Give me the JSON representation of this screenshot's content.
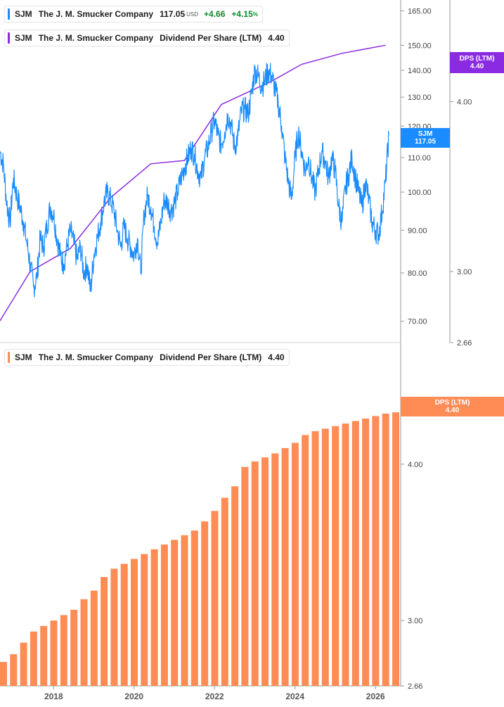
{
  "legend_price": {
    "ticker": "SJM",
    "company": "The J. M. Smucker Company",
    "price": "117.05",
    "currency": "USD",
    "change": "+4.66",
    "change_pct": "+4.15",
    "pct_sign": "%",
    "color": "#1a8cff"
  },
  "legend_dps_top": {
    "ticker": "SJM",
    "company": "The J. M. Smucker Company",
    "metric": "Dividend Per Share (LTM)",
    "value": "4.40",
    "color": "#8a2be2"
  },
  "legend_dps_bottom": {
    "ticker": "SJM",
    "company": "The J. M. Smucker Company",
    "metric": "Dividend Per Share (LTM)",
    "value": "4.40",
    "color": "#ff8c55"
  },
  "tags": {
    "price": {
      "label": "SJM",
      "value": "117.05",
      "color": "#1a8cff"
    },
    "dps_top": {
      "label": "DPS (LTM)",
      "value": "4.40",
      "color": "#8a2be2"
    },
    "dps_bottom": {
      "label": "DPS (LTM)",
      "value": "4.40",
      "color": "#ff8c55"
    }
  },
  "chart_data": [
    {
      "type": "line",
      "series": [
        {
          "name": "SJM",
          "color": "#1a8cff",
          "points": [
            [
              "2016-09",
              112
            ],
            [
              "2016-10",
              108
            ],
            [
              "2016-11",
              97
            ],
            [
              "2016-12",
              92
            ],
            [
              "2017-01",
              104
            ],
            [
              "2017-02",
              99
            ],
            [
              "2017-03",
              96
            ],
            [
              "2017-04",
              92
            ],
            [
              "2017-05",
              87
            ],
            [
              "2017-06",
              82
            ],
            [
              "2017-07",
              77
            ],
            [
              "2017-08",
              79
            ],
            [
              "2017-09",
              88
            ],
            [
              "2017-10",
              86
            ],
            [
              "2017-11",
              91
            ],
            [
              "2017-12",
              96
            ],
            [
              "2018-01",
              94
            ],
            [
              "2018-02",
              88
            ],
            [
              "2018-03",
              84
            ],
            [
              "2018-04",
              82
            ],
            [
              "2018-05",
              86
            ],
            [
              "2018-06",
              90
            ],
            [
              "2018-07",
              87
            ],
            [
              "2018-08",
              83
            ],
            [
              "2018-09",
              86
            ],
            [
              "2018-10",
              80
            ],
            [
              "2018-11",
              82
            ],
            [
              "2018-12",
              76
            ],
            [
              "2019-01",
              84
            ],
            [
              "2019-02",
              88
            ],
            [
              "2019-03",
              92
            ],
            [
              "2019-04",
              97
            ],
            [
              "2019-05",
              100
            ],
            [
              "2019-06",
              98
            ],
            [
              "2019-07",
              95
            ],
            [
              "2019-08",
              90
            ],
            [
              "2019-09",
              86
            ],
            [
              "2019-10",
              91
            ],
            [
              "2019-11",
              88
            ],
            [
              "2019-12",
              86
            ],
            [
              "2020-01",
              84
            ],
            [
              "2020-02",
              88
            ],
            [
              "2020-03",
              80
            ],
            [
              "2020-04",
              94
            ],
            [
              "2020-05",
              99
            ],
            [
              "2020-06",
              96
            ],
            [
              "2020-07",
              91
            ],
            [
              "2020-08",
              87
            ],
            [
              "2020-09",
              92
            ],
            [
              "2020-10",
              98
            ],
            [
              "2020-11",
              97
            ],
            [
              "2020-12",
              95
            ],
            [
              "2021-01",
              97
            ],
            [
              "2021-02",
              100
            ],
            [
              "2021-03",
              104
            ],
            [
              "2021-04",
              107
            ],
            [
              "2021-05",
              110
            ],
            [
              "2021-06",
              113
            ],
            [
              "2021-07",
              111
            ],
            [
              "2021-08",
              106
            ],
            [
              "2021-09",
              104
            ],
            [
              "2021-10",
              110
            ],
            [
              "2021-11",
              113
            ],
            [
              "2021-12",
              118
            ],
            [
              "2022-01",
              122
            ],
            [
              "2022-02",
              117
            ],
            [
              "2022-03",
              114
            ],
            [
              "2022-04",
              118
            ],
            [
              "2022-05",
              124
            ],
            [
              "2022-06",
              120
            ],
            [
              "2022-07",
              113
            ],
            [
              "2022-08",
              117
            ],
            [
              "2022-09",
              125
            ],
            [
              "2022-10",
              126
            ],
            [
              "2022-11",
              124
            ],
            [
              "2022-12",
              131
            ],
            [
              "2023-01",
              140
            ],
            [
              "2023-02",
              138
            ],
            [
              "2023-03",
              134
            ],
            [
              "2023-04",
              136
            ],
            [
              "2023-05",
              140
            ],
            [
              "2023-06",
              138
            ],
            [
              "2023-07",
              133
            ],
            [
              "2023-08",
              128
            ],
            [
              "2023-09",
              120
            ],
            [
              "2023-10",
              110
            ],
            [
              "2023-11",
              103
            ],
            [
              "2023-12",
              98
            ],
            [
              "2024-01",
              110
            ],
            [
              "2024-02",
              118
            ],
            [
              "2024-03",
              112
            ],
            [
              "2024-04",
              106
            ],
            [
              "2024-05",
              110
            ],
            [
              "2024-06",
              104
            ],
            [
              "2024-07",
              100
            ],
            [
              "2024-08",
              106
            ],
            [
              "2024-09",
              112
            ],
            [
              "2024-10",
              109
            ],
            [
              "2024-11",
              104
            ],
            [
              "2024-12",
              110
            ],
            [
              "2025-01",
              106
            ],
            [
              "2025-02",
              96
            ],
            [
              "2025-03",
              92
            ],
            [
              "2025-04",
              101
            ],
            [
              "2025-05",
              105
            ],
            [
              "2025-06",
              110
            ],
            [
              "2025-07",
              104
            ],
            [
              "2025-08",
              100
            ],
            [
              "2025-09",
              96
            ],
            [
              "2025-10",
              103
            ],
            [
              "2025-11",
              98
            ],
            [
              "2025-12",
              92
            ],
            [
              "2026-01",
              90
            ],
            [
              "2026-02",
              89
            ],
            [
              "2026-03",
              95
            ],
            [
              "2026-04",
              103
            ],
            [
              "2026-05",
              117.05
            ]
          ]
        },
        {
          "name": "Dividend Per Share (LTM)",
          "color": "#8a2be2",
          "points": [
            [
              "2016-09",
              2.76
            ],
            [
              "2017-06",
              3.0
            ],
            [
              "2018-06",
              3.12
            ],
            [
              "2019-06",
              3.4
            ],
            [
              "2020-06",
              3.6
            ],
            [
              "2021-04",
              3.62
            ],
            [
              "2022-03",
              3.98
            ],
            [
              "2023-06",
              4.14
            ],
            [
              "2024-03",
              4.26
            ],
            [
              "2025-03",
              4.34
            ],
            [
              "2026-04",
              4.4
            ]
          ]
        }
      ],
      "left_ticks": [
        "165.00",
        "150.00",
        "140.00",
        "130.00",
        "120.00",
        "110.00",
        "100.00",
        "90.00",
        "80.00",
        "70.00"
      ],
      "right_ticks": [
        "4.00",
        "3.00",
        "2.66"
      ],
      "ylim_price": [
        66,
        170
      ],
      "ylim_dps": [
        2.66,
        4.75
      ],
      "yscale": "log",
      "legend_position": "top-left"
    },
    {
      "type": "bar",
      "series": [
        {
          "name": "Dividend Per Share (LTM)",
          "color": "#ff8c55",
          "categories": [
            "2016-09",
            "2016-12",
            "2017-03",
            "2017-06",
            "2017-09",
            "2017-12",
            "2018-03",
            "2018-06",
            "2018-09",
            "2018-12",
            "2019-03",
            "2019-06",
            "2019-09",
            "2019-12",
            "2020-03",
            "2020-06",
            "2020-09",
            "2020-12",
            "2021-03",
            "2021-06",
            "2021-09",
            "2021-12",
            "2022-03",
            "2022-06",
            "2022-09",
            "2022-12",
            "2023-03",
            "2023-06",
            "2023-09",
            "2023-12",
            "2024-03",
            "2024-06",
            "2024-09",
            "2024-12",
            "2025-03",
            "2025-06",
            "2025-09",
            "2025-12",
            "2026-03",
            "2026-06"
          ],
          "values": [
            2.78,
            2.82,
            2.88,
            2.94,
            2.97,
            3.0,
            3.03,
            3.06,
            3.12,
            3.17,
            3.25,
            3.3,
            3.33,
            3.36,
            3.39,
            3.42,
            3.45,
            3.48,
            3.51,
            3.54,
            3.6,
            3.67,
            3.76,
            3.84,
            3.98,
            4.02,
            4.05,
            4.08,
            4.12,
            4.16,
            4.22,
            4.25,
            4.27,
            4.29,
            4.31,
            4.33,
            4.35,
            4.37,
            4.39,
            4.4
          ]
        }
      ],
      "x_ticks": [
        "2018",
        "2020",
        "2022",
        "2024",
        "2026"
      ],
      "right_ticks": [
        "4.00",
        "3.00",
        "2.66"
      ],
      "ylim": [
        2.66,
        4.75
      ],
      "yscale": "log",
      "legend_position": "top-left"
    }
  ]
}
